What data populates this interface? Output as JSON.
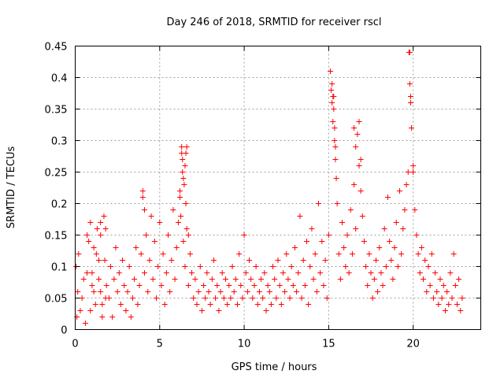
{
  "chart_data": {
    "type": "scatter",
    "title": "Day 246 of 2018, SRMTID for receiver rscl",
    "xlabel": "GPS time / hours",
    "ylabel": "SRMTID / TECUs",
    "xlim": [
      0,
      24
    ],
    "ylim": [
      0,
      0.45
    ],
    "x_ticks": [
      0,
      5,
      10,
      15,
      20
    ],
    "x_tick_labels": [
      "0",
      "5",
      "10",
      "15",
      "20"
    ],
    "y_ticks": [
      0,
      0.05,
      0.1,
      0.15,
      0.2,
      0.25,
      0.3,
      0.35,
      0.4,
      0.45
    ],
    "y_tick_labels": [
      "0",
      "0.05",
      "0.1",
      "0.15",
      "0.2",
      "0.25",
      "0.3",
      "0.35",
      "0.4",
      "0.45"
    ],
    "grid": true,
    "marker": "+",
    "color": "#ff0000",
    "series": [
      {
        "name": "SRMTID",
        "x": [
          0.05,
          0.1,
          0.15,
          0.2,
          0.3,
          0.4,
          0.5,
          0.6,
          0.7,
          0.8,
          0.9,
          1.0,
          1.1,
          1.2,
          1.3,
          1.4,
          1.5,
          1.6,
          1.7,
          1.8,
          0.9,
          1.0,
          1.1,
          1.25,
          1.4,
          1.5,
          1.6,
          1.75,
          1.85,
          2.0,
          2.1,
          2.2,
          2.3,
          2.4,
          2.5,
          2.6,
          2.7,
          2.8,
          2.9,
          3.0,
          3.1,
          3.2,
          3.3,
          3.4,
          3.5,
          3.6,
          3.7,
          3.8,
          3.9,
          4.0,
          4.1,
          4.2,
          4.3,
          4.4,
          4.5,
          4.6,
          4.7,
          4.8,
          4.9,
          5.0,
          5.1,
          5.2,
          5.3,
          5.4,
          5.5,
          5.6,
          5.7,
          5.8,
          5.9,
          6.0,
          6.1,
          6.2,
          6.3,
          6.4,
          6.5,
          6.6,
          6.7,
          6.8,
          6.9,
          7.0,
          6.3,
          6.35,
          6.4,
          6.5,
          6.6,
          6.2,
          6.25,
          6.45,
          6.55,
          6.7,
          7.1,
          7.2,
          7.3,
          7.4,
          7.5,
          7.6,
          7.7,
          7.8,
          7.9,
          8.0,
          8.1,
          8.2,
          8.3,
          8.4,
          8.5,
          8.6,
          8.7,
          8.8,
          8.9,
          9.0,
          9.1,
          9.2,
          9.3,
          9.4,
          9.5,
          9.6,
          9.7,
          9.8,
          9.9,
          10.0,
          10.1,
          10.2,
          10.3,
          10.4,
          10.5,
          10.6,
          10.7,
          10.8,
          10.9,
          11.0,
          11.1,
          11.2,
          11.3,
          11.4,
          11.5,
          11.6,
          11.7,
          11.8,
          11.9,
          12.0,
          12.1,
          12.2,
          12.3,
          12.4,
          12.5,
          12.6,
          12.7,
          12.8,
          12.9,
          13.0,
          13.1,
          13.2,
          13.3,
          13.4,
          13.5,
          13.6,
          13.7,
          13.8,
          13.9,
          14.0,
          14.1,
          14.2,
          14.3,
          14.4,
          14.5,
          14.6,
          14.7,
          14.8,
          14.9,
          15.0,
          15.1,
          15.15,
          15.2,
          15.25,
          15.3,
          15.35,
          15.4,
          15.45,
          15.5,
          15.6,
          15.7,
          15.8,
          15.9,
          16.0,
          16.1,
          16.2,
          16.3,
          16.4,
          16.5,
          16.6,
          16.7,
          16.8,
          16.9,
          17.0,
          17.1,
          17.2,
          17.3,
          17.4,
          17.5,
          17.6,
          17.7,
          17.8,
          17.9,
          18.0,
          18.1,
          18.2,
          18.3,
          18.4,
          18.5,
          18.6,
          18.7,
          18.8,
          18.9,
          19.0,
          19.1,
          19.2,
          19.3,
          19.4,
          19.5,
          19.6,
          19.7,
          19.75,
          19.8,
          19.85,
          19.9,
          20.0,
          20.1,
          20.2,
          20.3,
          20.4,
          20.5,
          20.6,
          20.7,
          20.8,
          20.9,
          21.0,
          21.1,
          21.2,
          21.3,
          21.4,
          21.5,
          21.6,
          21.7,
          21.8,
          21.9,
          22.0,
          22.1,
          22.2,
          22.3,
          22.4,
          22.5,
          22.6,
          22.7,
          22.8,
          22.9,
          15.2,
          15.25,
          15.3,
          15.35,
          15.4,
          16.5,
          16.6,
          16.8,
          16.9,
          19.8,
          19.85,
          19.9,
          20.0,
          6.35,
          6.55,
          4.0,
          4.1,
          0.7,
          1.5,
          1.8
        ],
        "y": [
          0.1,
          0.02,
          0.06,
          0.12,
          0.03,
          0.05,
          0.08,
          0.01,
          0.09,
          0.14,
          0.17,
          0.07,
          0.13,
          0.04,
          0.16,
          0.11,
          0.06,
          0.02,
          0.18,
          0.05,
          0.03,
          0.09,
          0.06,
          0.12,
          0.08,
          0.15,
          0.04,
          0.11,
          0.07,
          0.05,
          0.1,
          0.02,
          0.08,
          0.13,
          0.06,
          0.09,
          0.04,
          0.11,
          0.07,
          0.03,
          0.06,
          0.1,
          0.02,
          0.05,
          0.08,
          0.13,
          0.04,
          0.07,
          0.12,
          0.22,
          0.09,
          0.15,
          0.06,
          0.11,
          0.18,
          0.08,
          0.14,
          0.05,
          0.1,
          0.17,
          0.07,
          0.12,
          0.04,
          0.09,
          0.15,
          0.06,
          0.11,
          0.19,
          0.08,
          0.13,
          0.17,
          0.22,
          0.28,
          0.14,
          0.1,
          0.16,
          0.07,
          0.12,
          0.09,
          0.05,
          0.29,
          0.25,
          0.24,
          0.26,
          0.29,
          0.21,
          0.18,
          0.23,
          0.2,
          0.15,
          0.08,
          0.04,
          0.06,
          0.1,
          0.03,
          0.07,
          0.05,
          0.09,
          0.06,
          0.04,
          0.08,
          0.11,
          0.05,
          0.07,
          0.03,
          0.06,
          0.09,
          0.05,
          0.08,
          0.04,
          0.07,
          0.05,
          0.1,
          0.06,
          0.08,
          0.04,
          0.12,
          0.07,
          0.05,
          0.15,
          0.09,
          0.06,
          0.11,
          0.08,
          0.05,
          0.07,
          0.1,
          0.04,
          0.06,
          0.08,
          0.05,
          0.09,
          0.03,
          0.07,
          0.06,
          0.04,
          0.1,
          0.08,
          0.05,
          0.11,
          0.07,
          0.04,
          0.09,
          0.06,
          0.12,
          0.08,
          0.05,
          0.1,
          0.07,
          0.13,
          0.06,
          0.09,
          0.18,
          0.05,
          0.11,
          0.07,
          0.14,
          0.04,
          0.1,
          0.16,
          0.08,
          0.12,
          0.06,
          0.2,
          0.09,
          0.14,
          0.07,
          0.11,
          0.05,
          0.15,
          0.41,
          0.38,
          0.36,
          0.33,
          0.37,
          0.3,
          0.27,
          0.24,
          0.2,
          0.12,
          0.08,
          0.17,
          0.13,
          0.1,
          0.15,
          0.09,
          0.19,
          0.12,
          0.23,
          0.16,
          0.31,
          0.26,
          0.22,
          0.18,
          0.14,
          0.1,
          0.07,
          0.12,
          0.09,
          0.05,
          0.08,
          0.11,
          0.06,
          0.13,
          0.09,
          0.07,
          0.16,
          0.1,
          0.21,
          0.14,
          0.11,
          0.08,
          0.13,
          0.17,
          0.1,
          0.22,
          0.12,
          0.16,
          0.19,
          0.23,
          0.25,
          0.44,
          0.39,
          0.36,
          0.32,
          0.26,
          0.19,
          0.15,
          0.12,
          0.09,
          0.13,
          0.08,
          0.11,
          0.06,
          0.1,
          0.07,
          0.12,
          0.05,
          0.09,
          0.06,
          0.04,
          0.08,
          0.05,
          0.07,
          0.03,
          0.06,
          0.04,
          0.09,
          0.05,
          0.12,
          0.07,
          0.04,
          0.08,
          0.03,
          0.05,
          0.39,
          0.37,
          0.35,
          0.32,
          0.29,
          0.32,
          0.29,
          0.33,
          0.27,
          0.44,
          0.37,
          0.32,
          0.25,
          0.27,
          0.28,
          0.21,
          0.19,
          0.15,
          0.17,
          0.16
        ]
      }
    ]
  }
}
